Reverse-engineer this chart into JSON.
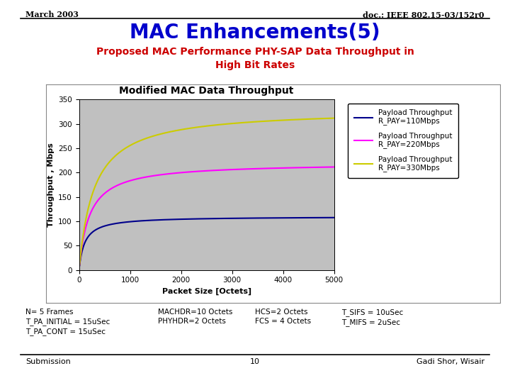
{
  "title_main": "MAC Enhancements(5)",
  "title_sub": "Proposed MAC Performance PHY-SAP Data Throughput in\nHigh Bit Rates",
  "header_left": "March 2003",
  "header_right": "doc.: IEEE 802.15-03/152r0",
  "chart_title": "Modified MAC Data Throughput",
  "xlabel": "Packet Size [Octets]",
  "ylabel": "Throughput , Mbps",
  "xlim": [
    0,
    5000
  ],
  "ylim": [
    0,
    350
  ],
  "xticks": [
    0,
    1000,
    2000,
    3000,
    4000,
    5000
  ],
  "yticks": [
    0,
    50,
    100,
    150,
    200,
    250,
    300,
    350
  ],
  "line1_color": "#00008B",
  "line2_color": "#FF00FF",
  "line3_color": "#CCCC00",
  "legend_labels": [
    "Payload Throughput\nR_PAY=110Mbps",
    "Payload Throughput\nR_PAY=220Mbps",
    "Payload Throughput\nR_PAY=330Mbps"
  ],
  "footer_left": "Submission",
  "footer_center": "10",
  "footer_right": "Gadi Shor, Wisair",
  "note_col1": "N= 5 Frames\nT_PA_INITIAL = 15uSec\nT_PA_CONT = 15uSec",
  "note_col2": "MACHDR=10 Octets\nPHYHDR=2 Octets",
  "note_col3": "HCS=2 Octets\nFCS = 4 Octets",
  "note_col4": "T_SIFS = 10uSec\nT_MIFS = 2uSec",
  "bg_color": "#ffffff",
  "plot_bg_color": "#C0C0C0",
  "title_main_color": "#0000CC",
  "title_sub_color": "#CC0000",
  "chart_border_color": "#aaaaaa",
  "chart_bg_color": "#f8f8f8"
}
